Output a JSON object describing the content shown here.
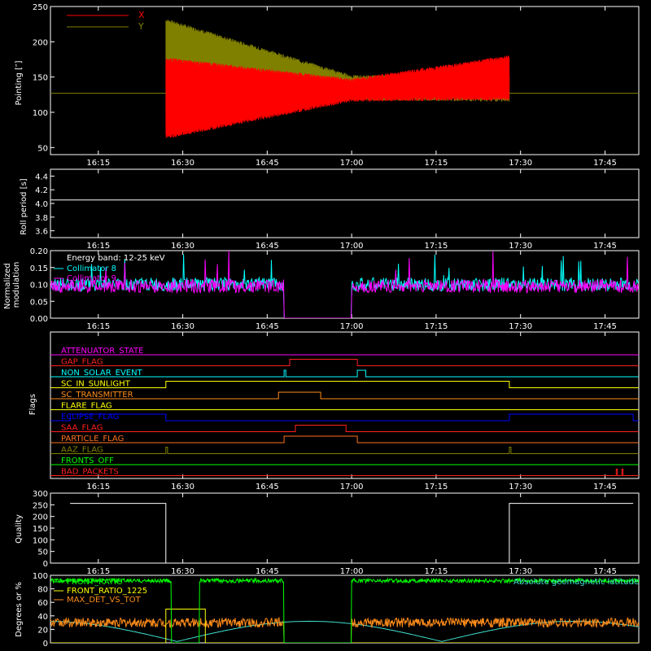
{
  "chart_data": [
    {
      "type": "line",
      "ylabel": "Pointing [″]",
      "ylim": [
        40,
        250
      ],
      "yticks": [
        "50",
        "100",
        "150",
        "200",
        "250"
      ],
      "xticks": [
        "16:15",
        "16:30",
        "16:45",
        "17:00",
        "17:15",
        "17:30",
        "17:45"
      ],
      "legend": "top-left",
      "series": [
        {
          "name": "X",
          "color": "#ff0000",
          "baseline": 127,
          "segments": [
            {
              "t_start": "16:27",
              "t_end": "17:00",
              "upper_from": 175,
              "upper_to": 145,
              "lower_from": 65,
              "lower_to": 118
            },
            {
              "t_start": "17:00",
              "t_end": "17:28",
              "upper_from": 145,
              "upper_to": 178,
              "lower_from": 118,
              "lower_to": 120
            }
          ]
        },
        {
          "name": "Y",
          "color": "#808000",
          "baseline": 127,
          "segments": [
            {
              "t_start": "16:27",
              "t_end": "17:00",
              "upper_from": 230,
              "upper_to": 150,
              "lower_from": 100,
              "lower_to": 120
            },
            {
              "t_start": "17:00",
              "t_end": "17:28",
              "upper_from": 150,
              "upper_to": 148,
              "lower_from": 120,
              "lower_to": 118
            }
          ]
        }
      ]
    },
    {
      "type": "line",
      "ylabel": "Roll period [s]",
      "ylim": [
        3.5,
        4.5
      ],
      "yticks": [
        "3.6",
        "3.8",
        "4.0",
        "4.2",
        "4.4"
      ],
      "xticks": [
        "16:15",
        "16:30",
        "16:45",
        "17:00",
        "17:15",
        "17:30",
        "17:45"
      ],
      "series": [
        {
          "value": 4.05,
          "color": "#ffffff"
        }
      ]
    },
    {
      "type": "line",
      "ylabel": "Normalized modulation",
      "ylim": [
        0.0,
        0.2
      ],
      "yticks": [
        "0.00",
        "0.05",
        "0.10",
        "0.15",
        "0.20"
      ],
      "xticks": [
        "16:15",
        "16:30",
        "16:45",
        "17:00",
        "17:15",
        "17:30",
        "17:45"
      ],
      "legend": "top-left",
      "annotations": [
        "Energy band: 12-25 keV"
      ],
      "series": [
        {
          "name": "Collimator 8",
          "color": "#00ffff",
          "mean": 0.1,
          "gap": [
            "16:48",
            "17:00"
          ]
        },
        {
          "name": "Collimator 9",
          "color": "#ff00ff",
          "mean": 0.095,
          "gap": [
            "16:48",
            "17:00"
          ]
        }
      ]
    },
    {
      "type": "line",
      "ylabel": "Flags",
      "xticks": [
        "16:15",
        "16:30",
        "16:45",
        "17:00",
        "17:15",
        "17:30",
        "17:45"
      ],
      "flags": [
        {
          "name": "ATTENUATOR_STATE",
          "color": "#ff00ff",
          "on": []
        },
        {
          "name": "GAP_FLAG",
          "color": "#ff2020",
          "on": [
            [
              "16:49",
              "17:01"
            ]
          ]
        },
        {
          "name": "NON_SOLAR_EVENT",
          "color": "#00ffff",
          "on": [
            [
              "16:48",
              "16:48.3"
            ],
            [
              "17:01",
              "17:02.5"
            ]
          ]
        },
        {
          "name": "SC_IN_SUNLIGHT",
          "color": "#ffff00",
          "on": [
            [
              "16:27",
              "17:28"
            ]
          ]
        },
        {
          "name": "SC_TRANSMITTER",
          "color": "#ff8c1a",
          "on": [
            [
              "16:47",
              "16:54.5"
            ]
          ]
        },
        {
          "name": "FLARE_FLAG",
          "color": "#ffff00",
          "on": []
        },
        {
          "name": "ECLIPSE_FLAG",
          "color": "#0000ff",
          "on": [
            [
              "16:10",
              "16:27"
            ],
            [
              "17:28",
              "17:50"
            ]
          ]
        },
        {
          "name": "SAA_FLAG",
          "color": "#ff2020",
          "on": [
            [
              "16:50",
              "16:59"
            ]
          ]
        },
        {
          "name": "PARTICLE_FLAG",
          "color": "#ff7020",
          "on": [
            [
              "16:48",
              "17:01"
            ]
          ]
        },
        {
          "name": "AAZ_FLAG",
          "color": "#808000",
          "on": [
            [
              "16:27",
              "16:27.3"
            ],
            [
              "17:28",
              "17:28.3"
            ]
          ]
        },
        {
          "name": "FRONTS_OFF",
          "color": "#00ff00",
          "on": []
        },
        {
          "name": "BAD_PACKETS",
          "color": "#ff2020",
          "on": [
            [
              "17:47",
              "17:47.2"
            ],
            [
              "17:48",
              "17:48.2"
            ]
          ]
        }
      ]
    },
    {
      "type": "line",
      "ylabel": "Quality",
      "ylim": [
        0,
        300
      ],
      "yticks": [
        "0",
        "50",
        "100",
        "150",
        "200",
        "250",
        "300"
      ],
      "xticks": [
        "16:15",
        "16:30",
        "16:45",
        "17:00",
        "17:15",
        "17:30",
        "17:45"
      ],
      "series": [
        {
          "color": "#ffffff",
          "points": [
            [
              "16:10",
              256
            ],
            [
              "16:27",
              256
            ],
            [
              "16:27",
              0
            ],
            [
              "17:28",
              0
            ],
            [
              "17:28",
              256
            ],
            [
              "17:50",
              256
            ]
          ]
        }
      ]
    },
    {
      "type": "line",
      "ylabel": "Degrees or %",
      "ylim": [
        0,
        100
      ],
      "yticks": [
        "0",
        "20",
        "40",
        "60",
        "80",
        "100"
      ],
      "legend": "top-left",
      "annotations": [
        "Absolute geomagnetic latitude"
      ],
      "series": [
        {
          "name": "FRONT_RATIO",
          "color": "#00ff00",
          "mean": 92
        },
        {
          "name": "FRONT_RATIO_1225",
          "color": "#ffff00",
          "mean": 50
        },
        {
          "name": "MAX_DET_VS_TOT",
          "color": "#ff8c1a",
          "mean": 30
        },
        {
          "name": "Absolute geomagnetic latitude",
          "color": "#40e0d0"
        }
      ]
    }
  ]
}
